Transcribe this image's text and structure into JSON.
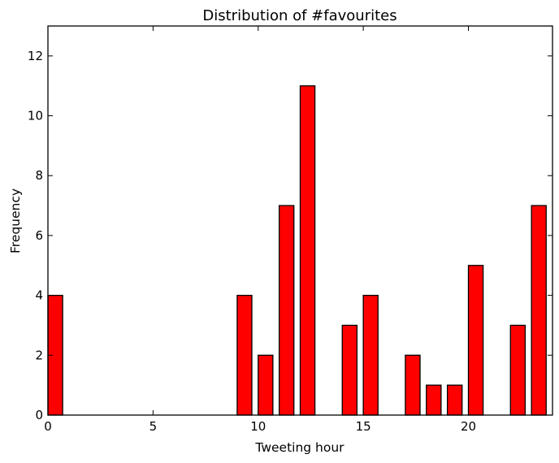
{
  "chart_data": {
    "type": "bar",
    "title": "Distribution of #favourites",
    "xlabel": "Tweeting hour",
    "ylabel": "Frequency",
    "x": [
      0,
      1,
      2,
      3,
      4,
      5,
      6,
      7,
      8,
      9,
      10,
      11,
      12,
      13,
      14,
      15,
      16,
      17,
      18,
      19,
      20,
      21,
      22,
      23
    ],
    "values": [
      4,
      0,
      0,
      0,
      0,
      0,
      0,
      0,
      0,
      4,
      2,
      7,
      11,
      0,
      3,
      4,
      0,
      2,
      1,
      1,
      5,
      0,
      3,
      7
    ],
    "bar_width": 0.7,
    "xlim": [
      0,
      24
    ],
    "ylim": [
      0,
      13
    ],
    "xticks": [
      0,
      5,
      10,
      15,
      20
    ],
    "yticks": [
      0,
      2,
      4,
      6,
      8,
      10,
      12
    ],
    "xtick_labels": [
      "0",
      "5",
      "10",
      "15",
      "20"
    ],
    "ytick_labels": [
      "0",
      "2",
      "4",
      "6",
      "8",
      "10",
      "12"
    ],
    "grid": false,
    "colors": {
      "bar_fill": "#ff0000",
      "bar_edge": "#000000",
      "axis": "#000000"
    }
  }
}
